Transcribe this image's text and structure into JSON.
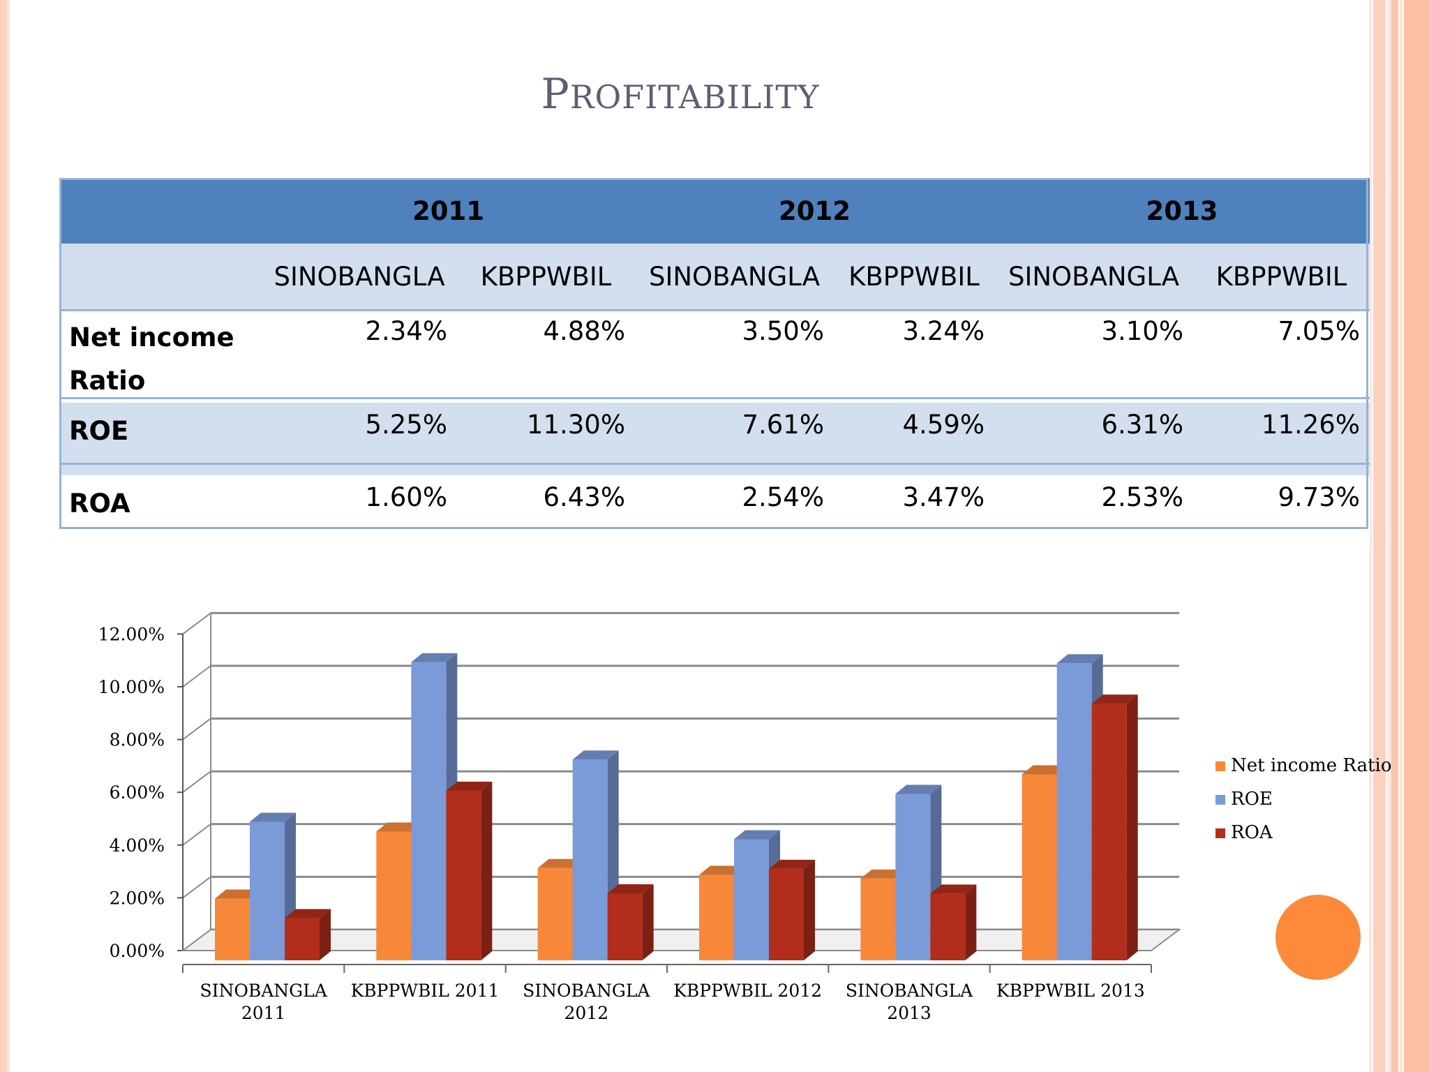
{
  "slide": {
    "title_first": "P",
    "title_rest": "ROFITABILITY"
  },
  "table": {
    "years": [
      "2011",
      "2012",
      "2013"
    ],
    "companies": [
      "SINOBANGLA",
      "KBPPWBIL",
      "SINOBANGLA",
      "KBPPWBIL",
      "SINOBANGLA",
      "KBPPWBIL"
    ],
    "rows": [
      {
        "label_line1": "Net income",
        "label_line2": "Ratio",
        "values": [
          "2.34%",
          "4.88%",
          "3.50%",
          "3.24%",
          "3.10%",
          "7.05%"
        ]
      },
      {
        "label_line1": "ROE",
        "label_line2": "",
        "values": [
          "5.25%",
          "11.30%",
          "7.61%",
          "4.59%",
          "6.31%",
          "11.26%"
        ]
      },
      {
        "label_line1": "ROA",
        "label_line2": "",
        "values": [
          "1.60%",
          "6.43%",
          "2.54%",
          "3.47%",
          "2.53%",
          "9.73%"
        ]
      }
    ]
  },
  "chart_data": {
    "type": "bar",
    "style": "3d-clustered-column",
    "categories": [
      [
        "SINOBANGLA",
        "2011"
      ],
      [
        "KBPPWBIL 2011"
      ],
      [
        "SINOBANGLA",
        "2012"
      ],
      [
        "KBPPWBIL 2012"
      ],
      [
        "SINOBANGLA",
        "2013"
      ],
      [
        "KBPPWBIL 2013"
      ]
    ],
    "series": [
      {
        "name": "Net income Ratio",
        "color": "#f7883a",
        "values": [
          2.34,
          4.88,
          3.5,
          3.24,
          3.1,
          7.05
        ]
      },
      {
        "name": "ROE",
        "color": "#7b9ad8",
        "values": [
          5.25,
          11.3,
          7.61,
          4.59,
          6.31,
          11.26
        ]
      },
      {
        "name": "ROA",
        "color": "#b12e1c",
        "values": [
          1.6,
          6.43,
          2.54,
          3.47,
          2.53,
          9.73
        ]
      }
    ],
    "yticks": [
      "0.00%",
      "2.00%",
      "4.00%",
      "6.00%",
      "8.00%",
      "10.00%",
      "12.00%"
    ],
    "ylim": [
      0,
      12
    ],
    "grid": true,
    "legend": "right"
  },
  "colors": {
    "header_blue": "#4f81bd",
    "band_light": "#d3dfee",
    "border": "#95b3d7",
    "accent_orange": "#fd8a3a",
    "title_gray": "#5b5f73"
  }
}
